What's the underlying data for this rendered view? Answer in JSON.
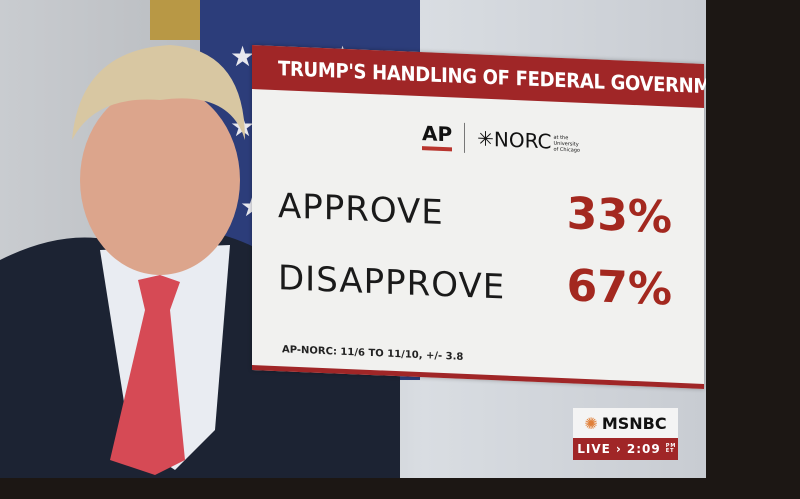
{
  "graphic": {
    "title": "TRUMP'S HANDLING OF FEDERAL GOVERNMENT?",
    "logos": {
      "ap": "AP",
      "norc": "NORC",
      "norc_sub": "at the University of Chicago"
    },
    "results": [
      {
        "label": "APPROVE",
        "value": "33%"
      },
      {
        "label": "DISAPPROVE",
        "value": "67%"
      }
    ],
    "source": "AP-NORC: 11/6 TO 11/10, +/- 3.8",
    "accent_color": "#a02627"
  },
  "bug": {
    "network": "MSNBC",
    "live": "LIVE",
    "time": "2:09",
    "tz": "PM ET"
  }
}
